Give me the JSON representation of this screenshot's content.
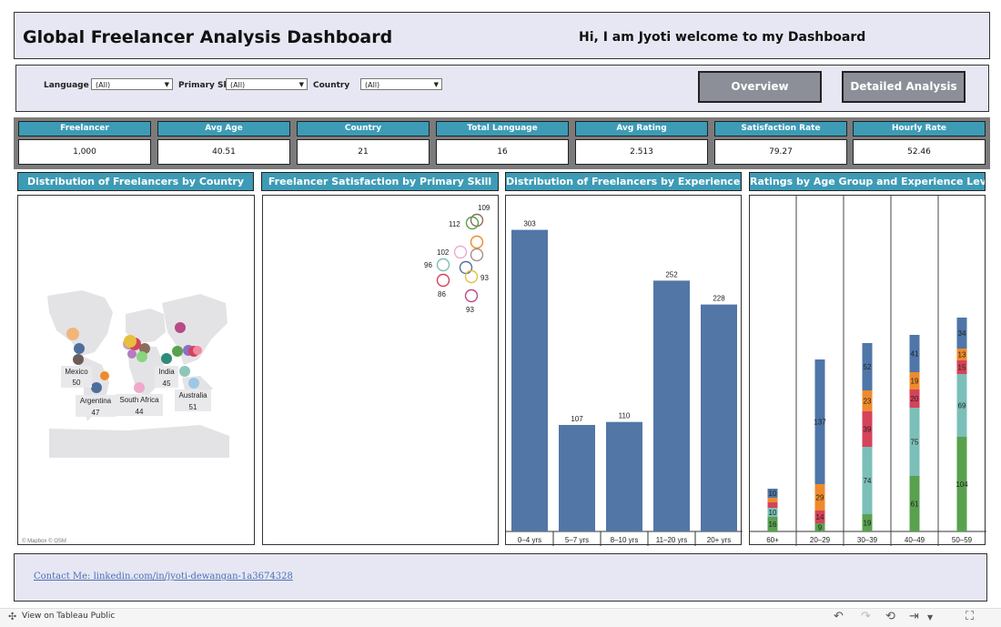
{
  "header": {
    "title": "Global Freelancer Analysis Dashboard",
    "welcome": "Hi, I am Jyoti welcome to my Dashboard"
  },
  "filters": [
    {
      "label": "Language",
      "value": "(All)"
    },
    {
      "label": "Primary Skill",
      "value": "(All)"
    },
    {
      "label": "Country",
      "value": "(All)"
    }
  ],
  "nav": {
    "overview": "Overview",
    "detailed": "Detailed Analysis"
  },
  "kpis": [
    {
      "label": "Freelancer",
      "value": "1,000"
    },
    {
      "label": "Avg Age",
      "value": "40.51"
    },
    {
      "label": "Country",
      "value": "21"
    },
    {
      "label": "Total Language",
      "value": "16"
    },
    {
      "label": "Avg Rating",
      "value": "2.513"
    },
    {
      "label": "Satisfaction Rate",
      "value": "79.27"
    },
    {
      "label": "Hourly Rate",
      "value": "52.46"
    }
  ],
  "sections": {
    "map": "Distribution of Freelancers by Country",
    "satisfaction": "Freelancer Satisfaction by Primary Skill",
    "experience": "Distribution of Freelancers by Experience Level",
    "ratings": "Ratings by Age Group and Experience Level"
  },
  "map": {
    "attribution": "© Mapbox  © OSM",
    "labels": [
      {
        "country": "Mexico",
        "value": "50"
      },
      {
        "country": "Argentina",
        "value": "47"
      },
      {
        "country": "South Africa",
        "value": "44"
      },
      {
        "country": "India",
        "value": "45"
      },
      {
        "country": "Australia",
        "value": "51"
      }
    ]
  },
  "chart_data": [
    {
      "type": "scatter",
      "title": "Freelancer Satisfaction by Primary Skill",
      "point_labels": [
        "109",
        "112",
        "102",
        "96",
        "93",
        "86",
        "93"
      ]
    },
    {
      "type": "bar",
      "title": "Distribution of Freelancers by Experience Level",
      "categories": [
        "0–4 yrs",
        "5–7 yrs",
        "8–10 yrs",
        "11–20 yrs",
        "20+ yrs"
      ],
      "values": [
        303,
        107,
        110,
        252,
        228
      ],
      "color": "#5276a6"
    },
    {
      "type": "bar",
      "stacked": true,
      "title": "Ratings by Age Group and Experience Level",
      "categories": [
        "60+",
        "20–29",
        "30–39",
        "40–49",
        "50–59"
      ],
      "series": [
        {
          "color": "#59a14f",
          "values": [
            16,
            9,
            19,
            61,
            104
          ]
        },
        {
          "color": "#7bbfb8",
          "values": [
            10,
            0,
            74,
            75,
            69
          ]
        },
        {
          "color": "#d6425a",
          "values": [
            6,
            14,
            39,
            20,
            15
          ]
        },
        {
          "color": "#ef8a2c",
          "values": [
            5,
            29,
            23,
            19,
            13
          ]
        },
        {
          "color": "#4f76a8",
          "values": [
            10,
            137,
            52,
            41,
            34
          ]
        }
      ],
      "labels": [
        [
          "16",
          "9",
          "19",
          "61",
          "104"
        ],
        [
          "10",
          "",
          "74",
          "75",
          "69"
        ],
        [
          "",
          "14",
          "39",
          "20",
          "15"
        ],
        [
          "",
          "29",
          "23",
          "19",
          "13"
        ],
        [
          "10",
          "137",
          "52",
          "41",
          "34"
        ]
      ]
    }
  ],
  "footer": {
    "contact": "Contact Me: linkedin.com/in/jyoti-dewangan-1a3674328"
  },
  "bottom_bar": {
    "tableau": "View on Tableau Public"
  }
}
